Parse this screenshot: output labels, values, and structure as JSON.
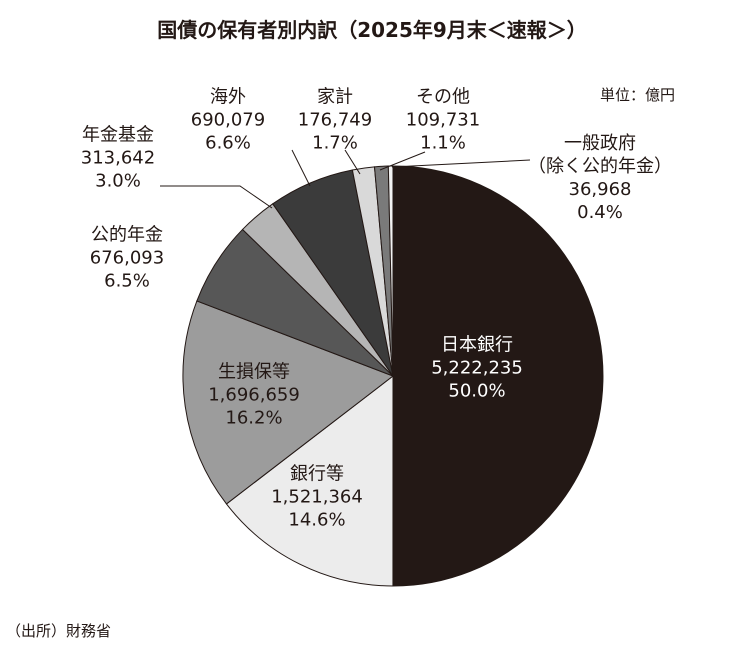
{
  "chart_data": {
    "type": "pie",
    "title": "国債の保有者別内訳（2025年9月末＜速報＞）",
    "unit": "単位：億円",
    "source": "（出所）財務省",
    "categories": [
      "日本銀行",
      "銀行等",
      "生損保等",
      "公的年金",
      "年金基金",
      "海外",
      "家計",
      "その他",
      "一般政府\n（除く公的年金）"
    ],
    "values": [
      5222235,
      1521364,
      1696659,
      676093,
      313642,
      690079,
      176749,
      109731,
      36968
    ],
    "value_labels": [
      "5,222,235",
      "1,521,364",
      "1,696,659",
      "676,093",
      "313,642",
      "690,079",
      "176,749",
      "109,731",
      "36,968"
    ],
    "percentages": [
      50.0,
      14.6,
      16.2,
      6.5,
      3.0,
      6.6,
      1.7,
      1.1,
      0.4
    ],
    "percentage_labels": [
      "50.0%",
      "14.6%",
      "16.2%",
      "6.5%",
      "3.0%",
      "6.6%",
      "1.7%",
      "1.1%",
      "0.4%"
    ],
    "colors": [
      "#231815",
      "#ececec",
      "#9c9c9c",
      "#575757",
      "#b5b5b5",
      "#3b3b3b",
      "#d9d9d9",
      "#7a7a7a",
      "#f2f2f2"
    ]
  }
}
